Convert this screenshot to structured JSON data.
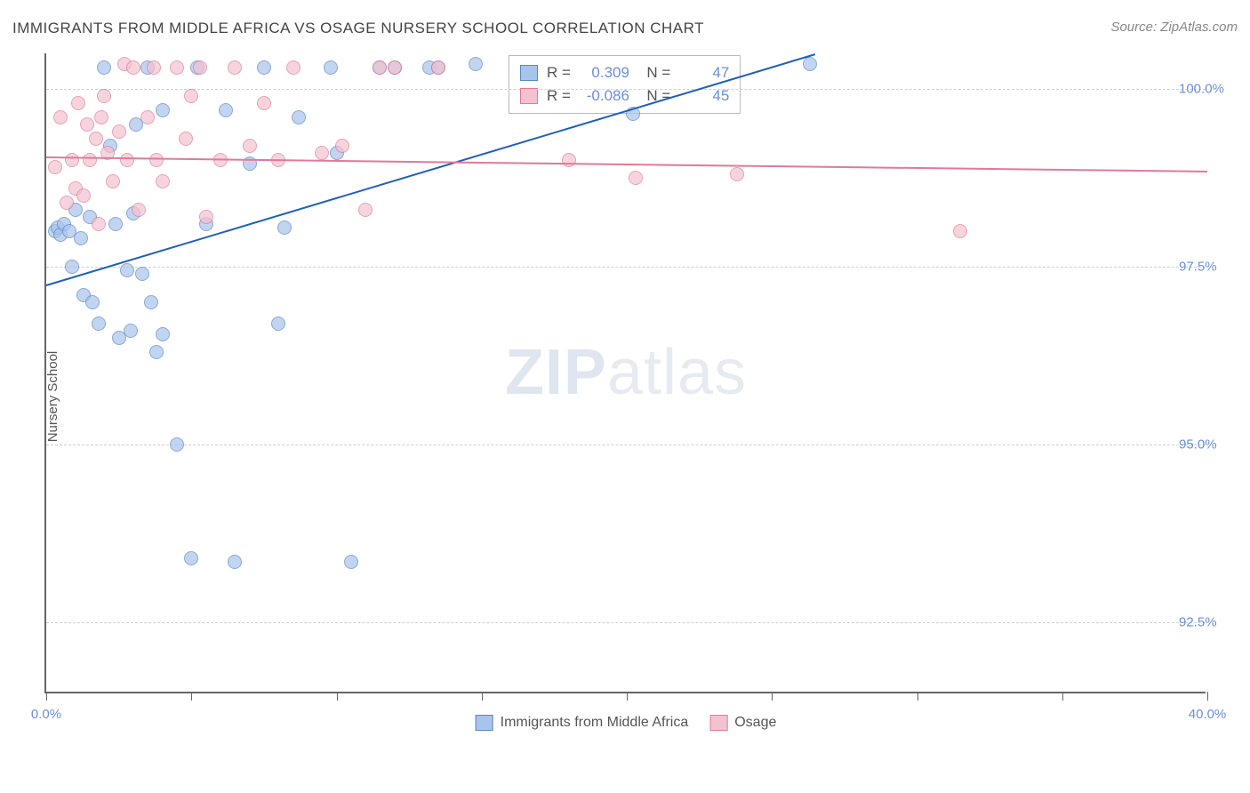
{
  "title": "IMMIGRANTS FROM MIDDLE AFRICA VS OSAGE NURSERY SCHOOL CORRELATION CHART",
  "source": "Source: ZipAtlas.com",
  "ylabel": "Nursery School",
  "watermark_bold": "ZIP",
  "watermark_light": "atlas",
  "chart": {
    "type": "scatter",
    "xlim": [
      0,
      40
    ],
    "ylim": [
      91.5,
      100.5
    ],
    "yticks": [
      92.5,
      95.0,
      97.5,
      100.0
    ],
    "ytick_labels": [
      "92.5%",
      "95.0%",
      "97.5%",
      "100.0%"
    ],
    "xticks": [
      0,
      5,
      10,
      15,
      20,
      25,
      30,
      35,
      40
    ],
    "xtick_labels_shown": {
      "0": "0.0%",
      "40": "40.0%"
    },
    "grid_color": "#d0d0d0",
    "background_color": "#ffffff",
    "series": [
      {
        "name": "Immigrants from Middle Africa",
        "marker_color": "#a7c4ec",
        "marker_border": "#5a86c9",
        "line_color": "#1f5fbf",
        "marker_size": 16,
        "opacity": 0.7,
        "R": "0.309",
        "N": "47",
        "trend": {
          "x1": 0,
          "y1": 97.25,
          "x2": 26.5,
          "y2": 100.5
        },
        "points": [
          [
            0.3,
            98.0
          ],
          [
            0.4,
            98.05
          ],
          [
            0.5,
            97.95
          ],
          [
            0.6,
            98.1
          ],
          [
            0.8,
            98.0
          ],
          [
            0.9,
            97.5
          ],
          [
            1.0,
            98.3
          ],
          [
            1.2,
            97.9
          ],
          [
            1.3,
            97.1
          ],
          [
            1.5,
            98.2
          ],
          [
            1.6,
            97.0
          ],
          [
            1.8,
            96.7
          ],
          [
            2.0,
            100.3
          ],
          [
            2.2,
            99.2
          ],
          [
            2.4,
            98.1
          ],
          [
            2.5,
            96.5
          ],
          [
            2.8,
            97.45
          ],
          [
            2.9,
            96.6
          ],
          [
            3.0,
            98.25
          ],
          [
            3.1,
            99.5
          ],
          [
            3.3,
            97.4
          ],
          [
            3.5,
            100.3
          ],
          [
            3.6,
            97.0
          ],
          [
            3.8,
            96.3
          ],
          [
            4.0,
            99.7
          ],
          [
            4.0,
            96.55
          ],
          [
            4.5,
            95.0
          ],
          [
            5.0,
            93.4
          ],
          [
            5.2,
            100.3
          ],
          [
            5.5,
            98.1
          ],
          [
            6.2,
            99.7
          ],
          [
            6.5,
            93.35
          ],
          [
            7.0,
            98.95
          ],
          [
            7.5,
            100.3
          ],
          [
            8.0,
            96.7
          ],
          [
            8.2,
            98.05
          ],
          [
            8.7,
            99.6
          ],
          [
            9.8,
            100.3
          ],
          [
            10.0,
            99.1
          ],
          [
            10.5,
            93.35
          ],
          [
            11.5,
            100.3
          ],
          [
            12.0,
            100.3
          ],
          [
            13.2,
            100.3
          ],
          [
            13.5,
            100.3
          ],
          [
            14.8,
            100.35
          ],
          [
            20.2,
            99.65
          ],
          [
            26.3,
            100.35
          ]
        ]
      },
      {
        "name": "Osage",
        "marker_color": "#f4c2cf",
        "marker_border": "#e07a98",
        "line_color": "#e07a98",
        "marker_size": 16,
        "opacity": 0.7,
        "R": "-0.086",
        "N": "45",
        "trend": {
          "x1": 0,
          "y1": 99.05,
          "x2": 40,
          "y2": 98.85
        },
        "points": [
          [
            0.3,
            98.9
          ],
          [
            0.5,
            99.6
          ],
          [
            0.7,
            98.4
          ],
          [
            0.9,
            99.0
          ],
          [
            1.0,
            98.6
          ],
          [
            1.1,
            99.8
          ],
          [
            1.3,
            98.5
          ],
          [
            1.4,
            99.5
          ],
          [
            1.5,
            99.0
          ],
          [
            1.7,
            99.3
          ],
          [
            1.8,
            98.1
          ],
          [
            1.9,
            99.6
          ],
          [
            2.0,
            99.9
          ],
          [
            2.1,
            99.1
          ],
          [
            2.3,
            98.7
          ],
          [
            2.5,
            99.4
          ],
          [
            2.7,
            100.35
          ],
          [
            2.8,
            99.0
          ],
          [
            3.0,
            100.3
          ],
          [
            3.2,
            98.3
          ],
          [
            3.5,
            99.6
          ],
          [
            3.7,
            100.3
          ],
          [
            3.8,
            99.0
          ],
          [
            4.0,
            98.7
          ],
          [
            4.5,
            100.3
          ],
          [
            4.8,
            99.3
          ],
          [
            5.0,
            99.9
          ],
          [
            5.3,
            100.3
          ],
          [
            5.5,
            98.2
          ],
          [
            6.0,
            99.0
          ],
          [
            6.5,
            100.3
          ],
          [
            7.0,
            99.2
          ],
          [
            7.5,
            99.8
          ],
          [
            8.0,
            99.0
          ],
          [
            8.5,
            100.3
          ],
          [
            9.5,
            99.1
          ],
          [
            10.2,
            99.2
          ],
          [
            11.0,
            98.3
          ],
          [
            11.5,
            100.3
          ],
          [
            12.0,
            100.3
          ],
          [
            13.5,
            100.3
          ],
          [
            18.0,
            99.0
          ],
          [
            20.3,
            98.75
          ],
          [
            23.8,
            98.8
          ],
          [
            31.5,
            98.0
          ]
        ]
      }
    ],
    "legend_bottom": [
      {
        "label": "Immigrants from Middle Africa",
        "fill": "#a7c4ec",
        "border": "#5a86c9"
      },
      {
        "label": "Osage",
        "fill": "#f4c2cf",
        "border": "#e07a98"
      }
    ]
  }
}
